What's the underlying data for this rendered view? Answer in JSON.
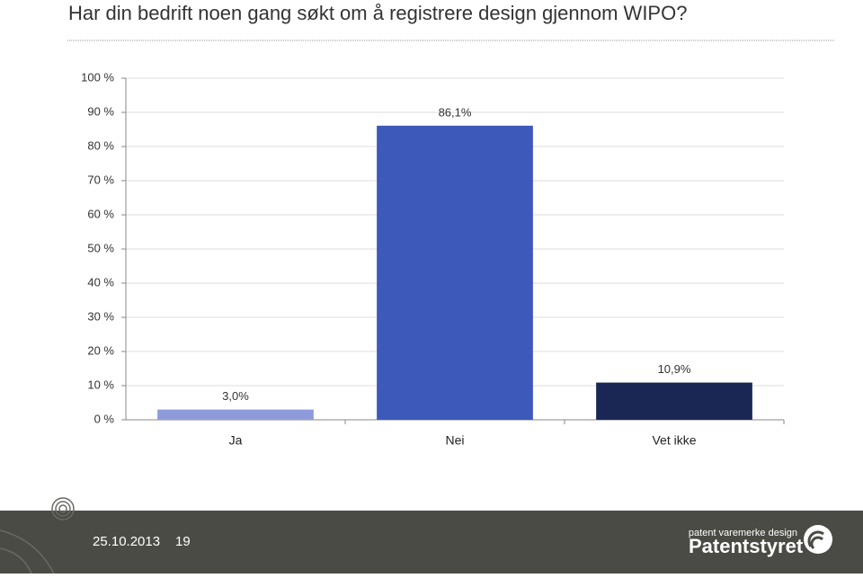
{
  "chart_data": {
    "type": "bar",
    "title": "Har din bedrift noen gang søkt om å registrere design gjennom WIPO?",
    "categories": [
      "Ja",
      "Nei",
      "Vet ikke"
    ],
    "values": [
      3.0,
      86.1,
      10.9
    ],
    "value_labels": [
      "3,0%",
      "86,1%",
      "10,9%"
    ],
    "colors": [
      "#8e9bdb",
      "#3d59b9",
      "#1a2754"
    ],
    "ylim": [
      0,
      100
    ],
    "yticks": [
      {
        "value": 0,
        "label": "0 %"
      },
      {
        "value": 10,
        "label": "10 %"
      },
      {
        "value": 20,
        "label": "20 %"
      },
      {
        "value": 30,
        "label": "30 %"
      },
      {
        "value": 40,
        "label": "40 %"
      },
      {
        "value": 50,
        "label": "50 %"
      },
      {
        "value": 60,
        "label": "60 %"
      },
      {
        "value": 70,
        "label": "70 %"
      },
      {
        "value": 80,
        "label": "80 %"
      },
      {
        "value": 90,
        "label": "90 %"
      },
      {
        "value": 100,
        "label": "100 %"
      }
    ],
    "grid": true
  },
  "footer": {
    "date": "25.10.2013",
    "page": "19",
    "logo_tagline": "patent varemerke design",
    "logo_name": "Patentstyret"
  }
}
